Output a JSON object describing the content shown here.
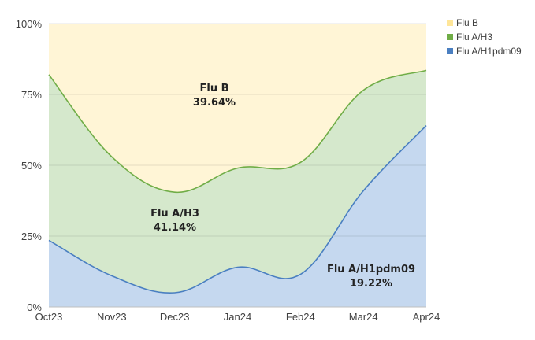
{
  "chart_data": {
    "type": "area",
    "stacked": true,
    "normalized_percent": true,
    "categories": [
      "Oct23",
      "Nov23",
      "Dec23",
      "Jan24",
      "Feb24",
      "Mar24",
      "Apr24"
    ],
    "series": [
      {
        "name": "Flu A/H1pdm09",
        "color": "#4a7fc1",
        "fill": "#c5d8ef",
        "values": [
          23.5,
          11,
          5,
          14,
          11.5,
          41,
          64
        ]
      },
      {
        "name": "Flu A/H3",
        "color": "#70ad47",
        "fill": "#d5e8cc",
        "values": [
          58.5,
          42,
          35.5,
          35,
          39.5,
          35.5,
          19.5
        ]
      },
      {
        "name": "Flu B",
        "color": "#ffe699",
        "fill": "#fff5d6",
        "values": [
          18,
          47,
          59.5,
          51,
          49,
          23.5,
          16.5
        ]
      }
    ],
    "y_ticks": [
      "0%",
      "25%",
      "50%",
      "75%",
      "100%"
    ],
    "ylim": [
      0,
      100
    ],
    "grid": true,
    "legend": {
      "position": "top-right",
      "order": [
        "Flu B",
        "Flu A/H3",
        "Flu A/H1pdm09"
      ]
    },
    "annotations": [
      {
        "label": "Flu B",
        "value": "39.64%"
      },
      {
        "label": "Flu A/H3",
        "value": "41.14%"
      },
      {
        "label": "Flu A/H1pdm09",
        "value": "19.22%"
      }
    ]
  }
}
